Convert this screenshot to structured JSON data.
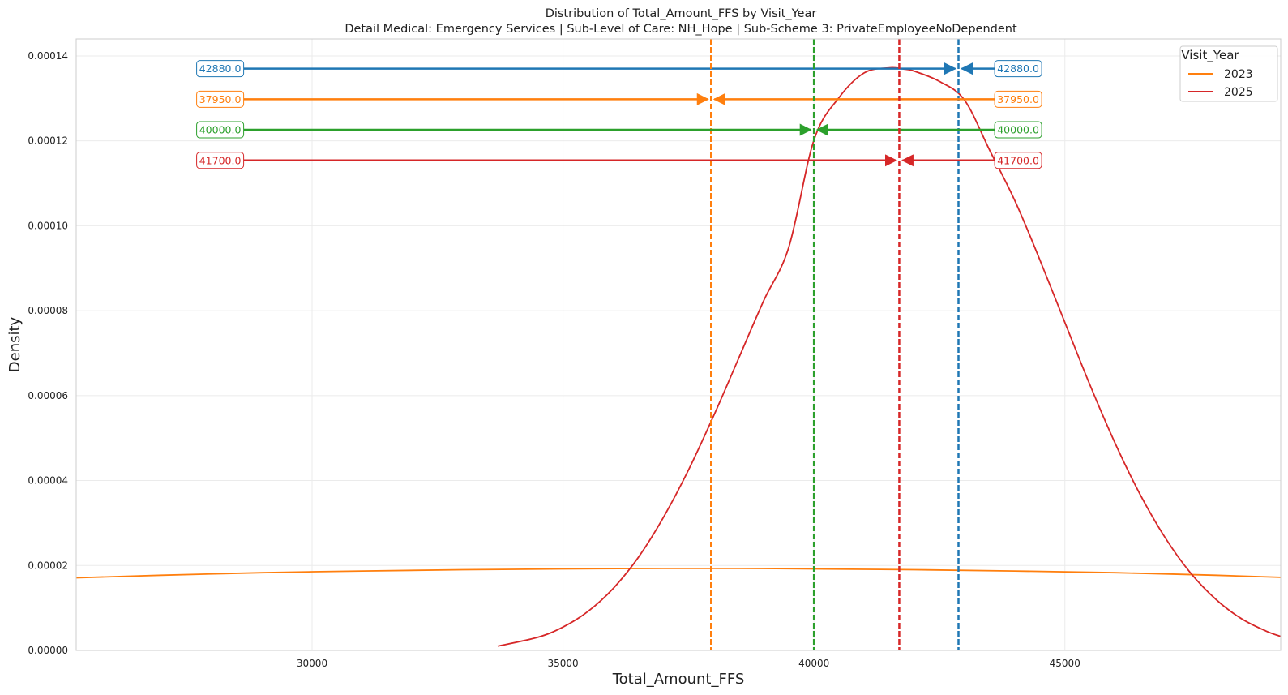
{
  "chart_data": {
    "type": "line",
    "title": "Distribution of Total_Amount_FFS by Visit_Year",
    "subtitle": "Detail Medical: Emergency Services | Sub-Level of Care: NH_Hope | Sub-Scheme 3: PrivateEmployeeNoDependent",
    "xlabel": "Total_Amount_FFS",
    "ylabel": "Density",
    "xlim": [
      25300,
      49300
    ],
    "ylim": [
      0,
      0.000144
    ],
    "grid": true,
    "x_ticks": [
      30000,
      35000,
      40000,
      45000
    ],
    "y_ticks": [
      0,
      2e-05,
      4e-05,
      6e-05,
      8e-05,
      0.0001,
      0.00012,
      0.00014
    ],
    "x_tick_labels": [
      "30000",
      "35000",
      "40000",
      "45000"
    ],
    "y_tick_labels": [
      "0.00000",
      "0.00002",
      "0.00004",
      "0.00006",
      "0.00008",
      "0.00010",
      "0.00012",
      "0.00014"
    ],
    "legend": {
      "title": "Visit_Year",
      "position": "top-right",
      "entries": [
        {
          "label": "2023",
          "color": "#ff7f0e"
        },
        {
          "label": "2025",
          "color": "#d62728"
        }
      ]
    },
    "series": [
      {
        "name": "2023",
        "color": "#ff7f0e",
        "x": [
          25300,
          27000,
          29000,
          31000,
          33000,
          35000,
          37000,
          38500,
          40000,
          42000,
          44000,
          46000,
          48000,
          49300
        ],
        "y": [
          1.71e-05,
          1.77e-05,
          1.83e-05,
          1.87e-05,
          1.9e-05,
          1.92e-05,
          1.93e-05,
          1.93e-05,
          1.92e-05,
          1.9e-05,
          1.87e-05,
          1.83e-05,
          1.77e-05,
          1.72e-05
        ]
      },
      {
        "name": "2025",
        "color": "#d62728",
        "x": [
          33700,
          34500,
          35000,
          35500,
          36000,
          36500,
          37000,
          37500,
          38000,
          38500,
          39000,
          39500,
          40000,
          40500,
          41000,
          41500,
          41800,
          42000,
          42500,
          43000,
          43500,
          44000,
          44500,
          45000,
          45500,
          46000,
          46500,
          47000,
          47500,
          48000,
          48500,
          49000,
          49300
        ],
        "y": [
          1e-06,
          3.1e-06,
          5.5e-06,
          9.2e-06,
          1.46e-05,
          2.19e-05,
          3.13e-05,
          4.25e-05,
          5.52e-05,
          6.88e-05,
          8.24e-05,
          9.5e-05,
          0.0001202,
          0.0001302,
          0.000136,
          0.0001372,
          0.0001369,
          0.0001364,
          0.000134,
          0.0001296,
          0.0001178,
          0.000106,
          9.2e-05,
          7.72e-05,
          6.25e-05,
          4.88e-05,
          3.67e-05,
          2.65e-05,
          1.83e-05,
          1.21e-05,
          7.6e-06,
          4.6e-06,
          3.3e-06
        ]
      }
    ],
    "markers": [
      {
        "value": 42880,
        "label": "42880.0",
        "color": "#1f77b4",
        "y": 0.000137
      },
      {
        "value": 37950,
        "label": "37950.0",
        "color": "#ff7f0e",
        "y": 0.0001298
      },
      {
        "value": 40000,
        "label": "40000.0",
        "color": "#2ca02c",
        "y": 0.0001226
      },
      {
        "value": 41700,
        "label": "41700.0",
        "color": "#d62728",
        "y": 0.0001154
      }
    ]
  }
}
